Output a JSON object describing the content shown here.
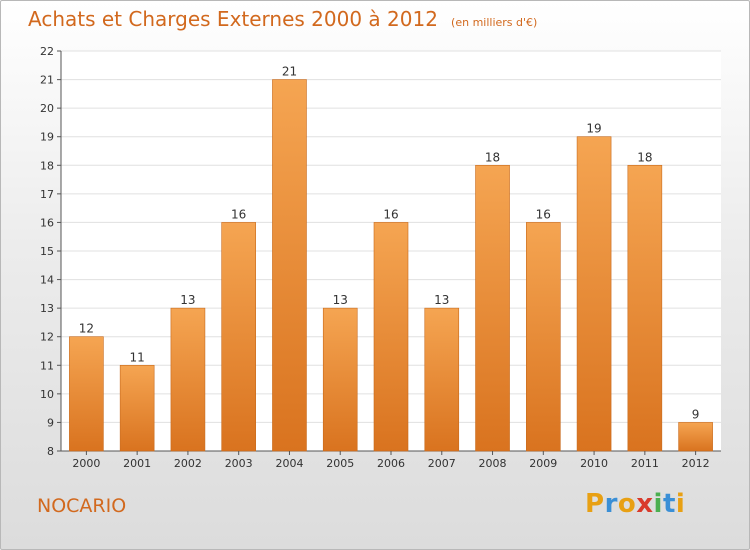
{
  "header": {
    "title": "Achats et Charges Externes 2000 à 2012",
    "subtitle": "(en milliers d'€)"
  },
  "footer": {
    "commune": "NOCARIO",
    "logo_text": "Proxiti"
  },
  "colors": {
    "bar_light": "#f5a552",
    "bar_dark": "#d9731f",
    "bar_edge": "#c86a1c",
    "title": "#d2691e",
    "logo_letters": [
      "#e8a013",
      "#3a8fd6",
      "#e8a013",
      "#d93a2b",
      "#4caf50",
      "#3a8fd6",
      "#e8a013"
    ]
  },
  "chart_data": {
    "type": "bar",
    "title": "Achats et Charges Externes 2000 à 2012",
    "subtitle": "(en milliers d'€)",
    "categories": [
      "2000",
      "2001",
      "2002",
      "2003",
      "2004",
      "2005",
      "2006",
      "2007",
      "2008",
      "2009",
      "2010",
      "2011",
      "2012"
    ],
    "values": [
      12,
      11,
      13,
      16,
      21,
      13,
      16,
      13,
      18,
      16,
      19,
      18,
      9
    ],
    "ylim": [
      8,
      22
    ],
    "yticks": [
      8,
      9,
      10,
      11,
      12,
      13,
      14,
      15,
      16,
      17,
      18,
      19,
      20,
      21,
      22
    ],
    "grid": true,
    "data_labels": true
  }
}
